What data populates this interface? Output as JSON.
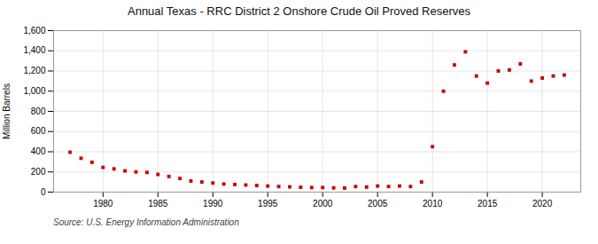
{
  "chart_data": {
    "type": "scatter",
    "title": "Annual Texas - RRC District 2 Onshore Crude Oil Proved Reserves",
    "ylabel": "Million Barrels",
    "annotations": [
      "Source: U.S. Energy Information Administration"
    ],
    "color": "#cc0000",
    "marker": "square",
    "grid": true,
    "xlim": [
      1975.5,
      2023.5
    ],
    "xticks": [
      1980,
      1985,
      1990,
      1995,
      2000,
      2005,
      2010,
      2015,
      2020
    ],
    "ylim": [
      0,
      1600
    ],
    "yticks": [
      0,
      200,
      400,
      600,
      800,
      {
        "value": 1000,
        "label": "1,000"
      },
      {
        "value": 1200,
        "label": "1,200"
      },
      {
        "value": 1400,
        "label": "1,400"
      },
      {
        "value": 1600,
        "label": "1,600"
      }
    ],
    "x": [
      1977,
      1978,
      1979,
      1980,
      1981,
      1982,
      1983,
      1984,
      1985,
      1986,
      1987,
      1988,
      1989,
      1990,
      1991,
      1992,
      1993,
      1994,
      1995,
      1996,
      1997,
      1998,
      1999,
      2000,
      2001,
      2002,
      2003,
      2004,
      2005,
      2006,
      2007,
      2008,
      2009,
      2010,
      2011,
      2012,
      2013,
      2014,
      2015,
      2016,
      2017,
      2018,
      2019,
      2020,
      2021,
      2022
    ],
    "values": [
      395,
      335,
      295,
      245,
      230,
      210,
      200,
      195,
      175,
      155,
      135,
      110,
      100,
      90,
      80,
      75,
      70,
      65,
      60,
      55,
      52,
      48,
      45,
      45,
      42,
      40,
      55,
      50,
      60,
      55,
      60,
      55,
      100,
      450,
      1000,
      1260,
      1390,
      1150,
      1080,
      1200,
      1210,
      1270,
      1100,
      1130,
      1150,
      1160
    ]
  }
}
